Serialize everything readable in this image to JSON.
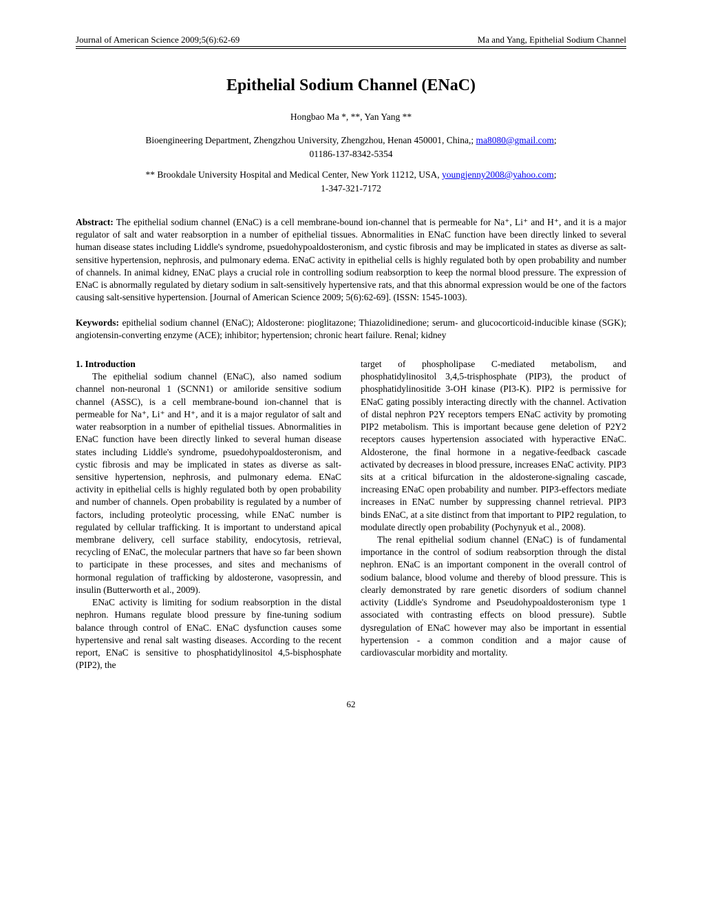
{
  "header": {
    "left": "Journal of American Science 2009;5(6):62-69",
    "right": "Ma and Yang, Epithelial Sodium Channel"
  },
  "title": "Epithelial Sodium Channel (ENaC)",
  "authors": "Hongbao Ma *, **, Yan Yang **",
  "affiliation1_pre": "Bioengineering Department, Zhengzhou University, Zhengzhou, Henan 450001, China,; ",
  "affiliation1_email": "ma8080@gmail.com",
  "affiliation1_post": ";",
  "affiliation1_phone": "01186-137-8342-5354",
  "affiliation2_pre": "** Brookdale University Hospital and Medical Center, New York 11212, USA, ",
  "affiliation2_email": "youngjenny2008@yahoo.com",
  "affiliation2_post": ";",
  "affiliation2_phone": "1-347-321-7172",
  "abstract_label": "Abstract:",
  "abstract_text": " The epithelial sodium channel (ENaC) is a cell membrane-bound ion-channel that is permeable for Na⁺, Li⁺ and H⁺, and it is a major regulator of salt and water reabsorption in a number of epithelial tissues. Abnormalities in ENaC function have been directly linked to several human disease states including Liddle's syndrome, psuedohypoaldosteronism, and cystic fibrosis and may be implicated in states as diverse as salt-sensitive hypertension, nephrosis, and pulmonary edema. ENaC activity in epithelial cells is highly regulated both by open probability and number of channels. In animal kidney, ENaC plays a crucial role in controlling sodium reabsorption to keep the normal blood pressure. The expression of ENaC is abnormally regulated by dietary sodium in salt-sensitively hypertensive rats, and that this abnormal expression would be one of the factors causing salt-sensitive hypertension. [Journal of American Science 2009; 5(6):62-69]. (ISSN: 1545-1003).",
  "keywords_label": "Keywords:",
  "keywords_text": " epithelial sodium channel (ENaC); Aldosterone: pioglitazone; Thiazolidinedione; serum- and glucocorticoid-inducible kinase (SGK); angiotensin-converting enzyme (ACE); inhibitor; hypertension; chronic heart failure. Renal; kidney",
  "section_heading": "1. Introduction",
  "col1_para1": "The epithelial sodium channel (ENaC), also named sodium channel non-neuronal 1 (SCNN1) or amiloride sensitive sodium channel (ASSC), is a cell membrane-bound ion-channel that is permeable for Na⁺, Li⁺ and H⁺, and it is a major regulator of salt and water reabsorption in a number of epithelial tissues. Abnormalities in ENaC function have been directly linked to several human disease states including Liddle's syndrome, psuedohypoaldosteronism, and cystic fibrosis and may be implicated in states as diverse as salt-sensitive hypertension, nephrosis, and pulmonary edema. ENaC activity in epithelial cells is highly regulated both by open probability and number of channels. Open probability is regulated by a number of factors, including proteolytic processing, while ENaC number is regulated by cellular trafficking. It is important to understand apical membrane delivery, cell surface stability, endocytosis, retrieval, recycling of ENaC, the molecular partners that have so far been shown to participate in these processes, and sites and mechanisms of hormonal regulation of trafficking by aldosterone, vasopressin, and insulin (Butterworth et al., 2009).",
  "col1_para2": "ENaC activity is limiting for sodium reabsorption in the distal nephron. Humans regulate blood pressure by fine-tuning sodium balance through control of ENaC. ENaC dysfunction causes some hypertensive and renal salt wasting diseases. According to the recent report, ENaC is sensitive to phosphatidylinositol 4,5-bisphosphate (PIP2), the",
  "col2_para1": "target of phospholipase C-mediated metabolism, and phosphatidylinositol 3,4,5-trisphosphate (PIP3), the product of phosphatidylinositide 3-OH kinase (PI3-K). PIP2 is permissive for ENaC gating possibly interacting directly with the channel. Activation of distal nephron P2Y receptors tempers ENaC activity by promoting PIP2 metabolism. This is important because gene deletion of P2Y2 receptors causes hypertension associated with hyperactive ENaC. Aldosterone, the final hormone in a negative-feedback cascade activated by decreases in blood pressure, increases ENaC activity. PIP3 sits at a critical bifurcation in the aldosterone-signaling cascade, increasing ENaC open probability and number. PIP3-effectors mediate increases in ENaC number by suppressing channel retrieval. PIP3 binds ENaC, at a site distinct from that important to PIP2 regulation, to modulate directly open probability (Pochynyuk et al., 2008).",
  "col2_para2": "The renal epithelial sodium channel (ENaC) is of fundamental importance in the control of sodium reabsorption through the distal nephron. ENaC is an important component in the overall control of sodium balance, blood volume and thereby of blood pressure. This is clearly demonstrated by rare genetic disorders of sodium channel activity (Liddle's Syndrome and Pseudohypoaldosteronism type 1 associated with contrasting effects on blood pressure). Subtle dysregulation of ENaC however may also be important in essential hypertension - a common condition and a major cause of cardiovascular morbidity and mortality.",
  "page_number": "62"
}
